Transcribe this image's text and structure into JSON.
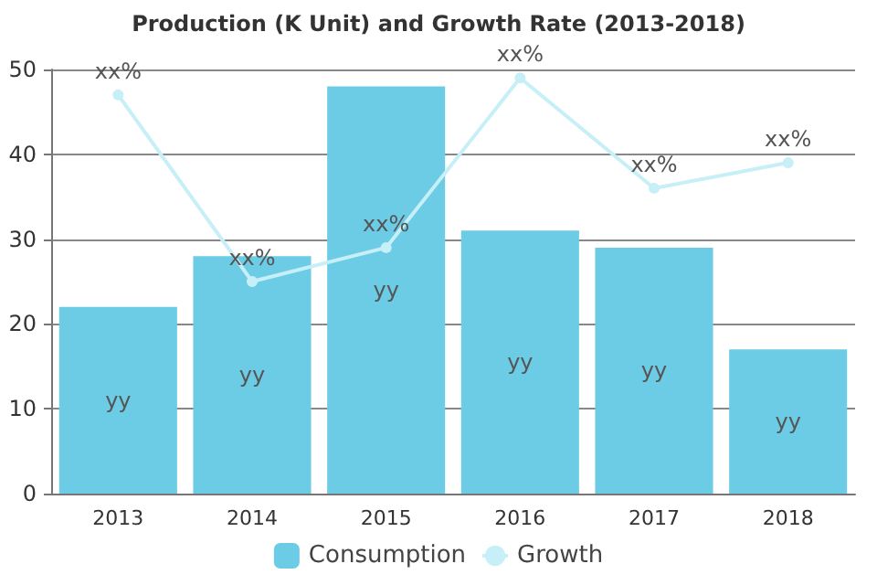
{
  "chart_data": {
    "type": "bar",
    "title": "Production (K Unit) and Growth Rate (2013-2018)",
    "categories": [
      "2013",
      "2014",
      "2015",
      "2016",
      "2017",
      "2018"
    ],
    "series": [
      {
        "name": "Consumption",
        "color": "#6ccbe5",
        "values": [
          22,
          28,
          48,
          31,
          29,
          17
        ],
        "value_labels": [
          "yy",
          "yy",
          "yy",
          "yy",
          "yy",
          "yy"
        ]
      },
      {
        "name": "Growth",
        "type": "line",
        "color": "#c6eff7",
        "marker": "circle",
        "values": [
          47,
          25,
          29,
          49,
          36,
          39
        ],
        "value_labels": [
          "xx%",
          "xx%",
          "xx%",
          "xx%",
          "xx%",
          "xx%"
        ]
      }
    ],
    "ylim": [
      0,
      50
    ],
    "yticks": [
      0,
      10,
      20,
      30,
      40,
      50
    ],
    "grid": "y",
    "legend": "bottom"
  }
}
